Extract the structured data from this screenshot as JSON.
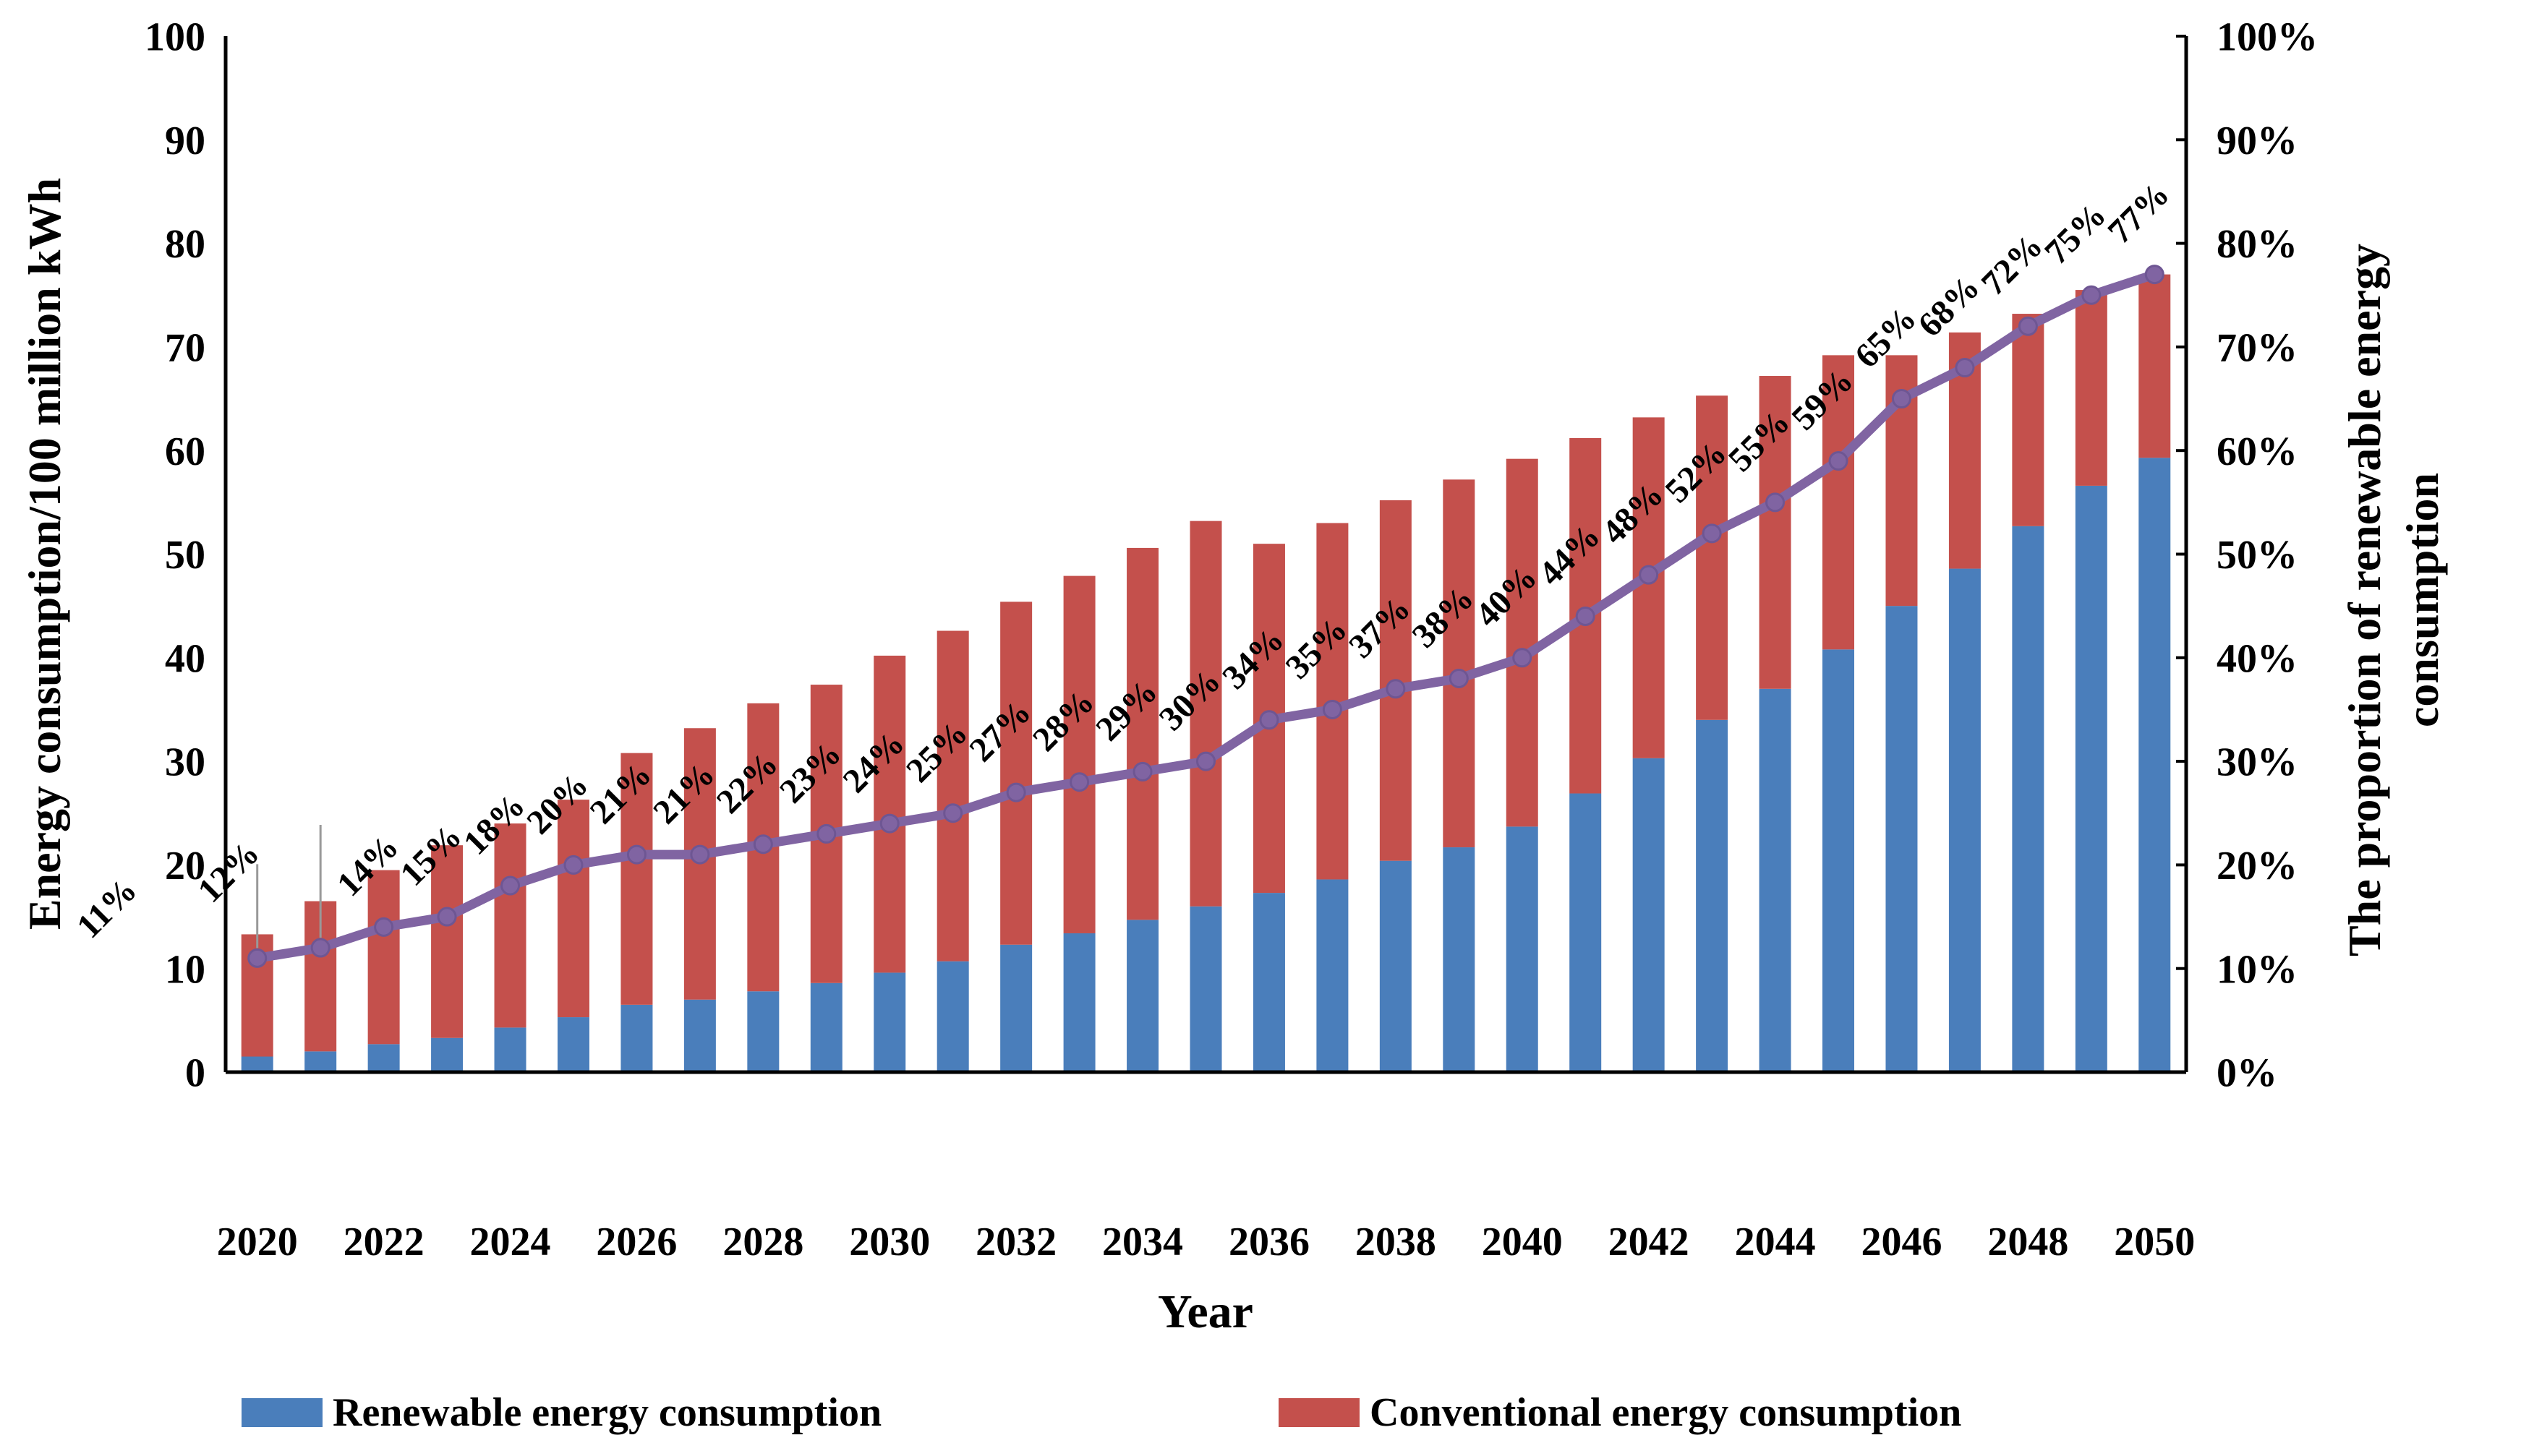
{
  "figure": {
    "right_axis_title_line1": "The proportion of renewable energy",
    "right_axis_title_line2": "consumption"
  },
  "legend": {
    "renewable_label": "Renewable energy consumption",
    "conventional_label": "Conventional energy consumption"
  },
  "colors": {
    "renewable": "#4A7EBB",
    "conventional": "#C4504C",
    "proportion_line": "#8064A2",
    "proportion_dot_stroke": "#6E5693",
    "axis": "#000000",
    "label_text": "#000000",
    "leader_line": "#999999"
  },
  "chart_data": {
    "type": "bar",
    "subtype": "stacked-bar-with-line",
    "x": [
      2020,
      2021,
      2022,
      2023,
      2024,
      2025,
      2026,
      2027,
      2028,
      2029,
      2030,
      2031,
      2032,
      2033,
      2034,
      2035,
      2036,
      2037,
      2038,
      2039,
      2040,
      2041,
      2042,
      2043,
      2044,
      2045,
      2046,
      2047,
      2048,
      2049,
      2050
    ],
    "series": [
      {
        "name": "Renewable energy consumption",
        "type": "bar",
        "stack": "total",
        "color": "#4A7EBB",
        "values": [
          1.5,
          2.0,
          2.7,
          3.3,
          4.3,
          5.3,
          6.5,
          7.0,
          7.8,
          8.6,
          9.6,
          10.7,
          12.3,
          13.4,
          14.7,
          16.0,
          17.3,
          18.6,
          20.4,
          21.7,
          23.7,
          26.9,
          30.3,
          34.0,
          37.0,
          40.8,
          45.0,
          48.6,
          52.7,
          56.6,
          59.3
        ]
      },
      {
        "name": "Conventional energy consumption",
        "type": "bar",
        "stack": "total",
        "color": "#C4504C",
        "values": [
          11.8,
          14.5,
          16.8,
          18.6,
          19.7,
          21.0,
          24.3,
          26.2,
          27.8,
          28.8,
          30.6,
          31.9,
          33.1,
          34.5,
          35.9,
          37.2,
          33.7,
          34.4,
          34.8,
          35.5,
          35.5,
          34.3,
          32.9,
          31.3,
          30.2,
          28.4,
          24.2,
          22.8,
          20.5,
          18.9,
          17.7
        ]
      },
      {
        "name": "The proportion of renewable energy consumption",
        "type": "line",
        "y_axis": "right",
        "color": "#8064A2",
        "values_percent": [
          11,
          12,
          14,
          15,
          18,
          20,
          21,
          21,
          22,
          23,
          24,
          25,
          27,
          28,
          29,
          30,
          34,
          35,
          37,
          38,
          40,
          44,
          48,
          52,
          55,
          59,
          65,
          68,
          72,
          75,
          77
        ],
        "point_labels": [
          "11%",
          "12%",
          "14%",
          "15%",
          "18%",
          "20%",
          "21%",
          "21%",
          "22%",
          "23%",
          "24%",
          "25%",
          "27%",
          "28%",
          "29%",
          "30%",
          "34%",
          "35%",
          "37%",
          "38%",
          "40%",
          "44%",
          "48%",
          "52%",
          "55%",
          "59%",
          "65%",
          "68%",
          "72%",
          "75%",
          "77%"
        ]
      }
    ],
    "left_axis": {
      "title": "Energy consumption/100 million kWh",
      "min": 0,
      "max": 100,
      "step": 10,
      "tick_labels": [
        "0",
        "10",
        "20",
        "30",
        "40",
        "50",
        "60",
        "70",
        "80",
        "90",
        "100"
      ]
    },
    "right_axis": {
      "title": "The proportion of renewable energy consumption",
      "min": 0,
      "max": 100,
      "step": 10,
      "tick_labels": [
        "0%",
        "10%",
        "20%",
        "30%",
        "40%",
        "50%",
        "60%",
        "70%",
        "80%",
        "90%",
        "100%"
      ]
    },
    "x_axis": {
      "title": "Year",
      "tick_labels": [
        "2020",
        "2022",
        "2024",
        "2026",
        "2028",
        "2030",
        "2032",
        "2034",
        "2036",
        "2038",
        "2040",
        "2042",
        "2044",
        "2046",
        "2048",
        "2050"
      ]
    },
    "legend_position": "bottom",
    "grid": "off"
  }
}
